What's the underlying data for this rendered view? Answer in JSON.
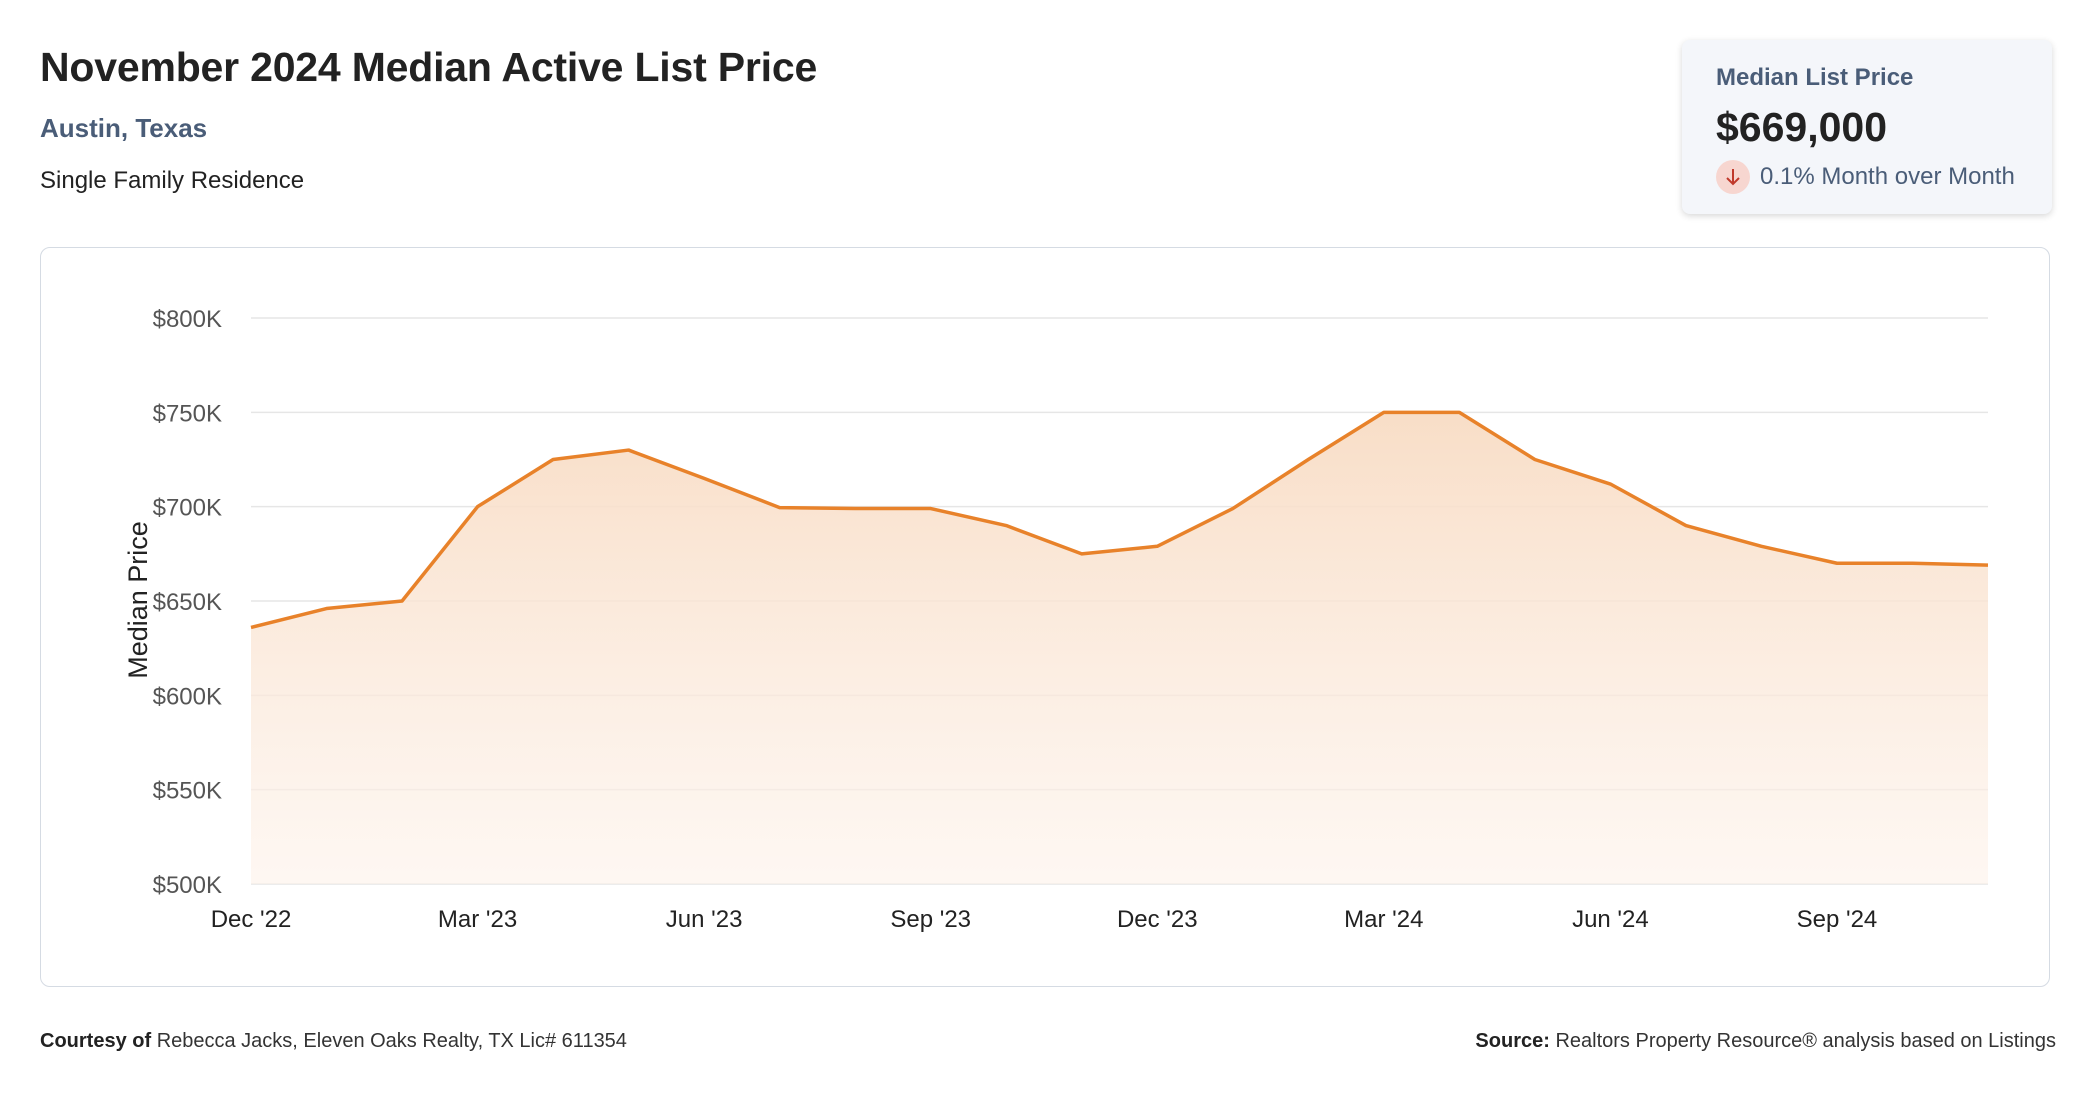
{
  "header": {
    "title": "November 2024 Median Active List Price",
    "location": "Austin, Texas",
    "property_type": "Single Family Residence"
  },
  "stat_card": {
    "label": "Median List Price",
    "value": "$669,000",
    "change_text": "0.1% Month over Month",
    "change_direction": "down",
    "change_icon": "arrow-down-icon"
  },
  "colors": {
    "line": "#e8822a",
    "area_top": "#f8dcc4",
    "grid": "#e6e6e6",
    "accent_text": "#4a5d78",
    "down_badge": "#f7d6d0",
    "down_arrow": "#c0392b"
  },
  "chart_data": {
    "type": "area",
    "ylabel": "Median Price",
    "ylim": [
      500000,
      800000
    ],
    "yticks": [
      500000,
      550000,
      600000,
      650000,
      700000,
      750000,
      800000
    ],
    "ytick_labels": [
      "$500K",
      "$550K",
      "$600K",
      "$650K",
      "$700K",
      "$750K",
      "$800K"
    ],
    "xtick_labels": [
      "Dec '22",
      "Mar '23",
      "Jun '23",
      "Sep '23",
      "Dec '23",
      "Mar '24",
      "Jun '24",
      "Sep '24"
    ],
    "x": [
      "Dec '22",
      "Jan '23",
      "Feb '23",
      "Mar '23",
      "Apr '23",
      "May '23",
      "Jun '23",
      "Jul '23",
      "Aug '23",
      "Sep '23",
      "Oct '23",
      "Nov '23",
      "Dec '23",
      "Jan '24",
      "Feb '24",
      "Mar '24",
      "Apr '24",
      "May '24",
      "Jun '24",
      "Jul '24",
      "Aug '24",
      "Sep '24",
      "Oct '24",
      "Nov '24"
    ],
    "values": [
      636000,
      646000,
      650000,
      700000,
      725000,
      730000,
      715000,
      699500,
      699000,
      699000,
      690000,
      675000,
      679000,
      699000,
      725000,
      750000,
      750000,
      725000,
      712000,
      690000,
      679000,
      670000,
      670000,
      669000
    ],
    "grid": true,
    "legend": "none"
  },
  "footer": {
    "courtesy_label": "Courtesy of",
    "courtesy_text": "Rebecca Jacks, Eleven Oaks Realty, TX Lic# 611354",
    "source_label": "Source:",
    "source_text": "Realtors Property Resource® analysis based on Listings"
  }
}
